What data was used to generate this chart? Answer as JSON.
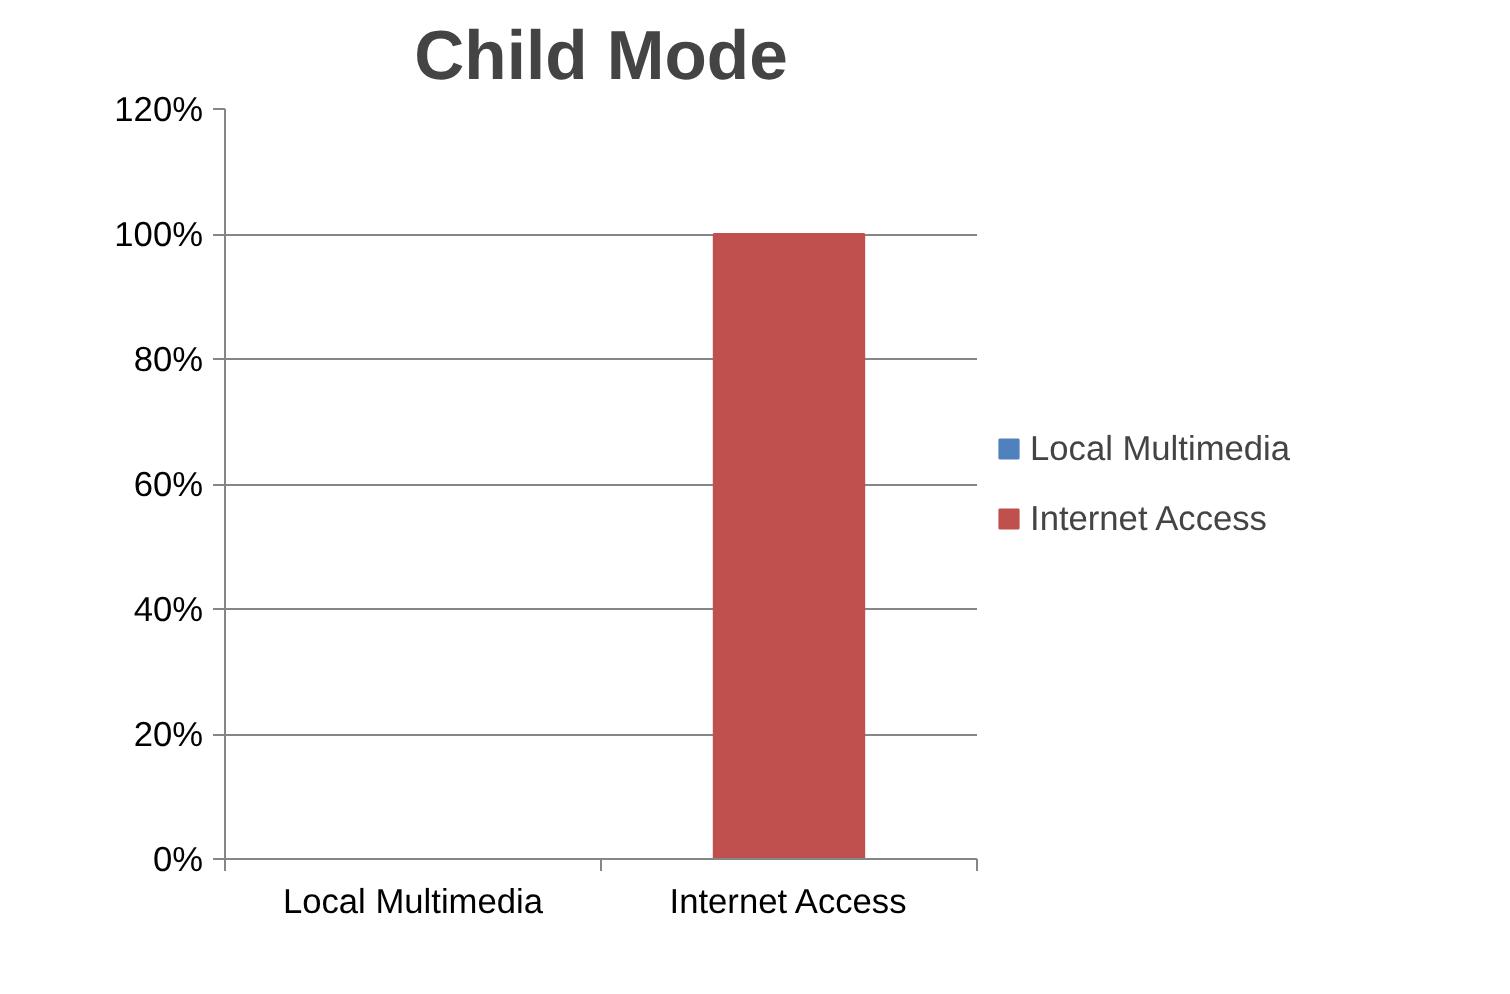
{
  "chart_data": {
    "type": "bar",
    "title": "Child Mode",
    "categories": [
      "Local Multimedia",
      "Internet Access"
    ],
    "series": [
      {
        "name": "Local Multimedia",
        "color": "#4f81bd",
        "values": [
          0,
          null
        ]
      },
      {
        "name": "Internet Access",
        "color": "#c0504d",
        "values": [
          null,
          100
        ]
      }
    ],
    "ylim": [
      0,
      120
    ],
    "yticks": [
      {
        "value": 0,
        "label": "0%"
      },
      {
        "value": 20,
        "label": "20%"
      },
      {
        "value": 40,
        "label": "40%"
      },
      {
        "value": 60,
        "label": "60%"
      },
      {
        "value": 80,
        "label": "80%"
      },
      {
        "value": 100,
        "label": "100%"
      },
      {
        "value": 120,
        "label": "120%"
      }
    ],
    "grid": "y",
    "legend": "right"
  }
}
